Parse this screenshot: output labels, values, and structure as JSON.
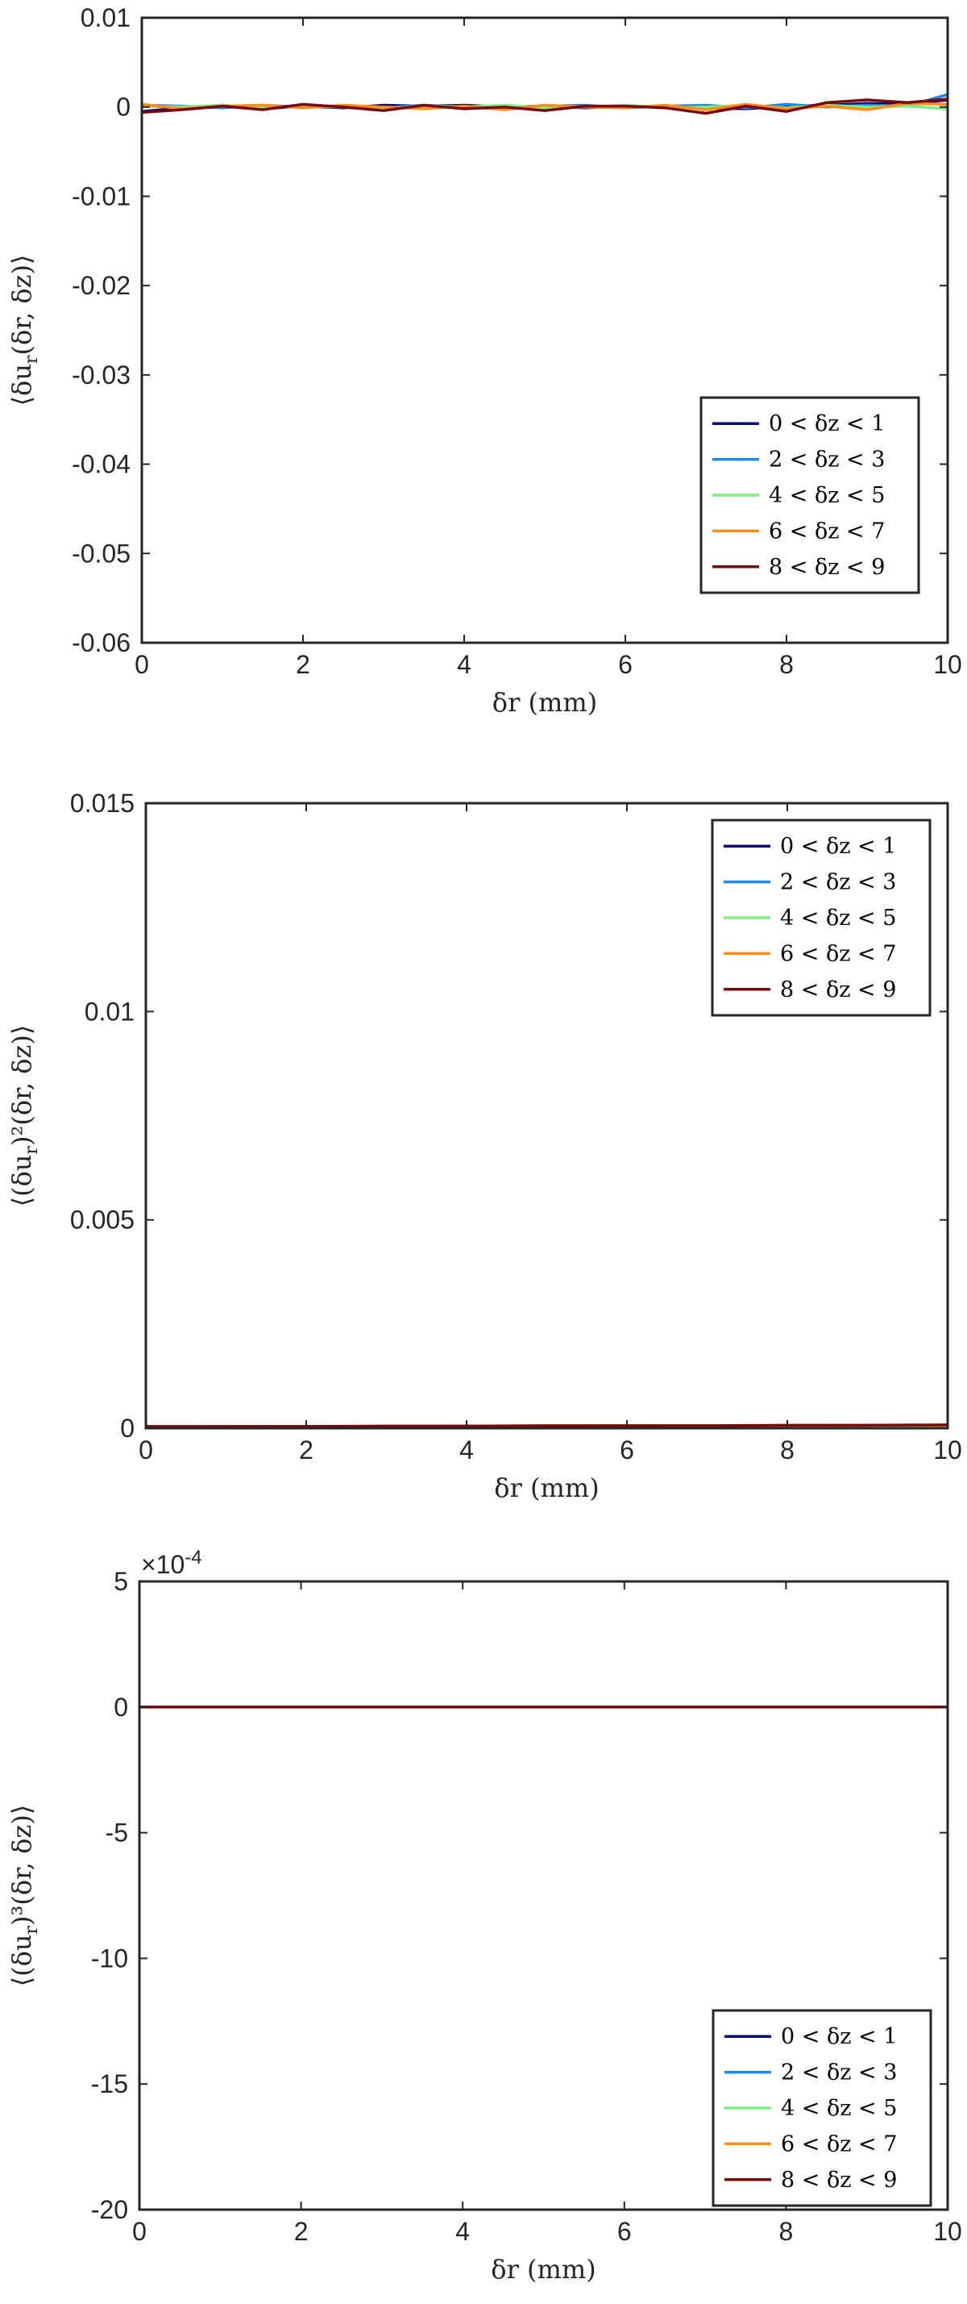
{
  "chart_data": [
    {
      "type": "line",
      "xlabel": "δr (mm)",
      "ylabel": "⟨δu_r(δr, δz)⟩",
      "xlim": [
        0,
        10
      ],
      "ylim": [
        -0.06,
        0.01
      ],
      "x_ticks": [
        "0",
        "2",
        "4",
        "6",
        "8",
        "10"
      ],
      "y_ticks": [
        "-0.06",
        "-0.05",
        "-0.04",
        "-0.03",
        "-0.02",
        "-0.01",
        "0",
        "0.01"
      ],
      "y_tick_values": [
        -0.06,
        -0.05,
        -0.04,
        -0.03,
        -0.02,
        -0.01,
        0,
        0.01
      ],
      "grid": false,
      "legend_position": "bottom-right",
      "x": [
        0,
        0.5,
        1,
        1.5,
        2,
        2.5,
        3,
        3.5,
        4,
        4.5,
        5,
        5.5,
        6,
        6.5,
        7,
        7.5,
        8,
        8.5,
        9,
        9.5,
        10
      ],
      "series": [
        {
          "name": "0 < δz < 1",
          "color": "#0c0c7f",
          "values": [
            -0.0005,
            -0.0001,
            0.0002,
            -0.0002,
            0.0001,
            -0.0001,
            0.0002,
            0.0001,
            0.0002,
            0.0,
            0.0001,
            -0.0001,
            0.0001,
            0.0,
            -0.0001,
            -0.0002,
            0.0001,
            0.0002,
            0.0004,
            0.0003,
            0.0008
          ]
        },
        {
          "name": "2 < δz < 3",
          "color": "#1e88e5",
          "values": [
            0.0002,
            0.0001,
            -0.0001,
            0.0002,
            0.0,
            0.0001,
            -0.0001,
            0.0002,
            0.0,
            -0.0002,
            0.0001,
            0.0002,
            -0.0001,
            0.0001,
            0.0002,
            -0.0001,
            0.0003,
            0.0,
            0.0002,
            0.0001,
            0.0014
          ]
        },
        {
          "name": "4 < δz < 5",
          "color": "#7cf07c",
          "values": [
            0.0001,
            0.0,
            0.0002,
            -0.0001,
            0.0001,
            0.0,
            -0.0002,
            0.0001,
            0.0,
            0.0002,
            -0.0001,
            0.0,
            0.0002,
            -0.0001,
            0.0,
            0.0002,
            -0.0001,
            0.0002,
            0.0,
            0.0001,
            -0.0002
          ]
        },
        {
          "name": "6 < δz < 7",
          "color": "#ff8c1a",
          "values": [
            0.0003,
            -0.0002,
            0.0001,
            0.0002,
            -0.0001,
            0.0002,
            0.0,
            -0.0002,
            0.0001,
            -0.0003,
            0.0002,
            0.0,
            -0.0001,
            0.0002,
            -0.0003,
            0.0003,
            -0.0002,
            0.0001,
            -0.0003,
            0.0004,
            0.0003
          ]
        },
        {
          "name": "8 < δz < 9",
          "color": "#7a0a0a",
          "values": [
            -0.0006,
            -0.0003,
            0.0001,
            -0.0003,
            0.0003,
            0.0,
            -0.0004,
            0.0002,
            -0.0002,
            0.0,
            -0.0004,
            0.0001,
            0.0001,
            -0.0001,
            -0.0007,
            0.0001,
            -0.0005,
            0.0005,
            0.0008,
            0.0005,
            0.0009
          ]
        }
      ]
    },
    {
      "type": "line",
      "xlabel": "δr (mm)",
      "ylabel": "⟨(δu_r)²(δr, δz)⟩",
      "xlim": [
        0,
        10
      ],
      "ylim": [
        0,
        0.015
      ],
      "x_ticks": [
        "0",
        "2",
        "4",
        "6",
        "8",
        "10"
      ],
      "y_ticks": [
        "0",
        "0.005",
        "0.01",
        "0.015"
      ],
      "y_tick_values": [
        0,
        0.005,
        0.01,
        0.015
      ],
      "grid": false,
      "legend_position": "top-right",
      "x": [
        0,
        1,
        2,
        3,
        4,
        5,
        6,
        7,
        8,
        9,
        10
      ],
      "series": [
        {
          "name": "0 < δz < 1",
          "color": "#0c0c7f",
          "values": [
            3e-05,
            3e-05,
            4e-05,
            4e-05,
            4e-05,
            5e-05,
            5e-05,
            5e-05,
            6e-05,
            6e-05,
            6e-05
          ]
        },
        {
          "name": "2 < δz < 3",
          "color": "#1e88e5",
          "values": [
            3e-05,
            3e-05,
            4e-05,
            4e-05,
            5e-05,
            5e-05,
            5e-05,
            6e-05,
            6e-05,
            6e-05,
            7e-05
          ]
        },
        {
          "name": "4 < δz < 5",
          "color": "#7cf07c",
          "values": [
            3e-05,
            3e-05,
            4e-05,
            4e-05,
            4e-05,
            5e-05,
            5e-05,
            5e-05,
            6e-05,
            6e-05,
            6e-05
          ]
        },
        {
          "name": "6 < δz < 7",
          "color": "#ff8c1a",
          "values": [
            3e-05,
            4e-05,
            4e-05,
            4e-05,
            5e-05,
            5e-05,
            6e-05,
            6e-05,
            6e-05,
            7e-05,
            7e-05
          ]
        },
        {
          "name": "8 < δz < 9",
          "color": "#7a0a0a",
          "values": [
            4e-05,
            4e-05,
            4e-05,
            5e-05,
            5e-05,
            6e-05,
            6e-05,
            6e-05,
            7e-05,
            7e-05,
            8e-05
          ]
        }
      ]
    },
    {
      "type": "line",
      "xlabel": "δr (mm)",
      "ylabel": "⟨(δu_r)³(δr, δz)⟩",
      "xlim": [
        0,
        10
      ],
      "ylim": [
        -20,
        5
      ],
      "y_scale_label": "×10",
      "y_scale_exponent": "-4",
      "x_ticks": [
        "0",
        "2",
        "4",
        "6",
        "8",
        "10"
      ],
      "y_ticks": [
        "-20",
        "-15",
        "-10",
        "-5",
        "0",
        "5"
      ],
      "y_tick_values": [
        -20,
        -15,
        -10,
        -5,
        0,
        5
      ],
      "grid": false,
      "legend_position": "bottom-right",
      "x": [
        0,
        10
      ],
      "series": [
        {
          "name": "0 < δz < 1",
          "color": "#0c0c7f",
          "values": [
            0,
            0
          ]
        },
        {
          "name": "2 < δz < 3",
          "color": "#1e88e5",
          "values": [
            0,
            0
          ]
        },
        {
          "name": "4 < δz < 5",
          "color": "#7cf07c",
          "values": [
            0,
            0
          ]
        },
        {
          "name": "6 < δz < 7",
          "color": "#ff8c1a",
          "values": [
            0,
            0
          ]
        },
        {
          "name": "8 < δz < 9",
          "color": "#7a0a0a",
          "values": [
            0,
            0
          ]
        }
      ]
    }
  ]
}
